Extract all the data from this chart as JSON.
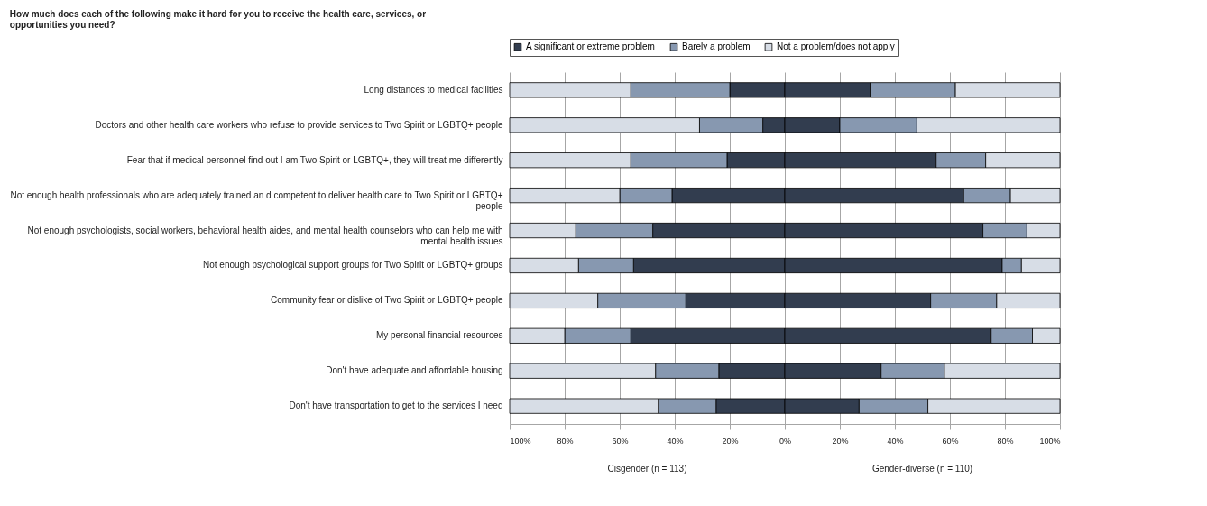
{
  "chart_data": {
    "type": "bar",
    "orientation": "horizontal",
    "stacked": true,
    "title": "How much does each of the following make it hard for you to receive the health care, services, or opportunities you need?",
    "categories": [
      "Long distances to medical facilities",
      "Doctors and other health care workers who refuse to provide services to Two Spirit or LGBTQ+ people",
      "Fear that if medical personnel find out I am Two Spirit or LGBTQ+, they will treat me differently",
      "Not enough health professionals who are adequately trained an d competent to deliver health care to Two Spirit or LGBTQ+ people",
      "Not enough psychologists, social workers, behavioral health aides, and mental health counselors who can help me with mental health issues",
      "Not enough psychological support groups for Two Spirit or LGBTQ+ groups",
      "Community fear or dislike of Two Spirit or LGBTQ+ people",
      "My personal financial resources",
      "Don't have adequate and affordable housing",
      "Don't have transportation to get to the services I need"
    ],
    "series": [
      {
        "color": "#323d4f",
        "values": [
          -20,
          -8,
          -21,
          -41,
          -48,
          -55,
          -36,
          -56,
          -24,
          -25
        ]
      },
      {
        "color": "#8798b0",
        "values": [
          -36,
          -23,
          -35,
          -19,
          -28,
          -20,
          -32,
          -24,
          -23,
          -21
        ]
      },
      {
        "color": "#d7dde6",
        "values": [
          -44,
          -69,
          -44,
          -40,
          -24,
          -25,
          -32,
          -20,
          -53,
          -54
        ]
      },
      {
        "name": "A significant or extreme problem",
        "color": "#323d4f",
        "values": [
          31,
          20,
          55,
          65,
          72,
          79,
          53,
          75,
          35,
          27
        ]
      },
      {
        "name": "Barely a problem",
        "color": "#8798b0",
        "values": [
          31,
          28,
          18,
          17,
          16,
          7,
          24,
          15,
          23,
          25
        ]
      },
      {
        "name": "Not a problem/does not apply",
        "color": "#d7dde6",
        "values": [
          38,
          52,
          27,
          18,
          12,
          14,
          23,
          10,
          42,
          48
        ]
      }
    ],
    "xlim": [
      -100,
      100
    ],
    "xticks": [
      {
        "value": -100,
        "label": "100%"
      },
      {
        "value": -80,
        "label": "80%"
      },
      {
        "value": -60,
        "label": "60%"
      },
      {
        "value": -40,
        "label": "40%"
      },
      {
        "value": -20,
        "label": "20%"
      },
      {
        "value": 0,
        "label": "0%"
      },
      {
        "value": 20,
        "label": "20%"
      },
      {
        "value": 40,
        "label": "40%"
      },
      {
        "value": 60,
        "label": "60%"
      },
      {
        "value": 80,
        "label": "80%"
      },
      {
        "value": 100,
        "label": "100%"
      }
    ],
    "grid": "x",
    "legend": "top",
    "annotations": [
      "Cisgender (n = 113)",
      "Gender-diverse (n = 110)"
    ]
  }
}
